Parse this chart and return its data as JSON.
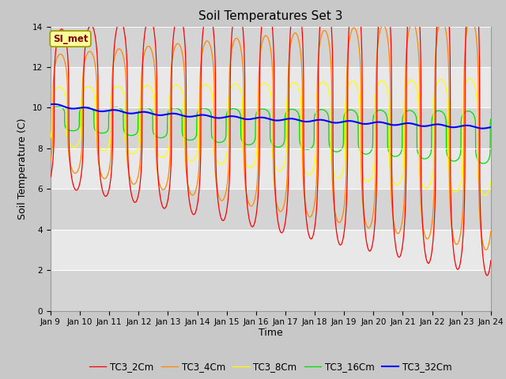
{
  "title": "Soil Temperatures Set 3",
  "xlabel": "Time",
  "ylabel": "Soil Temperature (C)",
  "ylim": [
    0,
    14
  ],
  "yticks": [
    0,
    2,
    4,
    6,
    8,
    10,
    12,
    14
  ],
  "x_tick_labels": [
    "Jan 9",
    "Jan 10",
    "Jan 11",
    "Jan 12",
    "Jan 13",
    "Jan 14",
    "Jan 15",
    "Jan 16",
    "Jan 17",
    "Jan 18",
    "Jan 19",
    "Jan 20",
    "Jan 21",
    "Jan 22",
    "Jan 23",
    "Jan 24"
  ],
  "legend_labels": [
    "TC3_2Cm",
    "TC3_4Cm",
    "TC3_8Cm",
    "TC3_16Cm",
    "TC3_32Cm"
  ],
  "colors": [
    "#ff0000",
    "#ff8800",
    "#ffff00",
    "#00dd00",
    "#0000ff"
  ],
  "annotation_text": "SI_met",
  "title_fontsize": 11,
  "axis_label_fontsize": 9,
  "tick_fontsize": 7.5,
  "legend_fontsize": 8.5,
  "fig_bg": "#c8c8c8",
  "plot_bg": "#e8e8e8",
  "band_color": "#d4d4d4"
}
